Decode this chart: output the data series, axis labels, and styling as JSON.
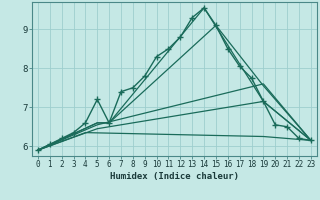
{
  "xlabel": "Humidex (Indice chaleur)",
  "background_color": "#c5e8e5",
  "grid_color": "#9ecece",
  "line_color": "#1a6b5a",
  "xlim": [
    -0.5,
    23.5
  ],
  "ylim": [
    5.75,
    9.7
  ],
  "xticks": [
    0,
    1,
    2,
    3,
    4,
    5,
    6,
    7,
    8,
    9,
    10,
    11,
    12,
    13,
    14,
    15,
    16,
    17,
    18,
    19,
    20,
    21,
    22,
    23
  ],
  "yticks": [
    6,
    7,
    8,
    9
  ],
  "series": [
    {
      "x": [
        0,
        1,
        2,
        3,
        4,
        5,
        6,
        7,
        8,
        9,
        10,
        11,
        12,
        13,
        14,
        15,
        16,
        17,
        18,
        19,
        20,
        21,
        22,
        23
      ],
      "y": [
        5.9,
        6.05,
        6.2,
        6.35,
        6.6,
        7.2,
        6.6,
        7.4,
        7.5,
        7.8,
        8.3,
        8.5,
        8.8,
        9.3,
        9.55,
        9.1,
        8.5,
        8.05,
        7.75,
        7.15,
        6.55,
        6.5,
        6.2,
        6.15
      ],
      "marker": true,
      "linewidth": 1.0
    },
    {
      "x": [
        0,
        5,
        6,
        14,
        19,
        23
      ],
      "y": [
        5.9,
        6.6,
        6.6,
        9.55,
        7.15,
        6.15
      ],
      "marker": false,
      "linewidth": 0.9
    },
    {
      "x": [
        0,
        5,
        6,
        15,
        19,
        23
      ],
      "y": [
        5.9,
        6.6,
        6.6,
        9.1,
        7.55,
        6.15
      ],
      "marker": false,
      "linewidth": 0.9
    },
    {
      "x": [
        0,
        5,
        19,
        23
      ],
      "y": [
        5.9,
        6.55,
        7.6,
        6.15
      ],
      "marker": false,
      "linewidth": 0.9
    },
    {
      "x": [
        0,
        5,
        19,
        23
      ],
      "y": [
        5.9,
        6.45,
        7.15,
        6.15
      ],
      "marker": false,
      "linewidth": 0.9
    },
    {
      "x": [
        0,
        4,
        19,
        23
      ],
      "y": [
        5.9,
        6.35,
        6.25,
        6.15
      ],
      "marker": false,
      "linewidth": 0.9
    }
  ]
}
